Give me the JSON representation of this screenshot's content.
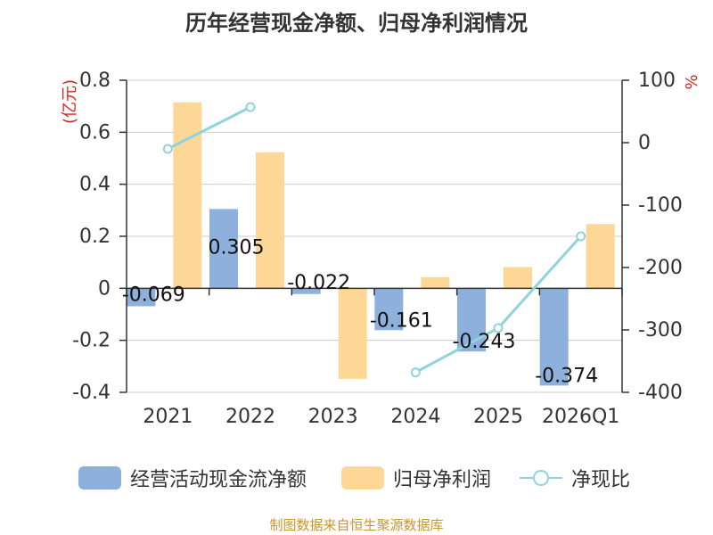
{
  "chart_data": {
    "type": "bar",
    "title": "历年经营现金净额、归母净利润情况",
    "categories": [
      "2021",
      "2022",
      "2023",
      "2024",
      "2025",
      "2026Q1"
    ],
    "series": [
      {
        "name": "经营活动现金流净额",
        "type": "bar",
        "axis": "left",
        "color": "#8eb0dc",
        "values": [
          -0.069,
          0.305,
          -0.022,
          -0.161,
          -0.243,
          -0.374
        ],
        "labels": [
          "-0.069",
          "0.305",
          "-0.022",
          "-0.161",
          "-0.243",
          "-0.374"
        ]
      },
      {
        "name": "归母净利润",
        "type": "bar",
        "axis": "left",
        "color": "#fdd795",
        "values": [
          0.715,
          0.523,
          -0.348,
          0.043,
          0.082,
          0.247
        ]
      },
      {
        "name": "净现比",
        "type": "line",
        "axis": "right",
        "color": "#8fd3dc",
        "values": [
          -10,
          57,
          null,
          -368,
          -297,
          -150
        ]
      }
    ],
    "ylabel_left": "(亿元)",
    "ylabel_right": "%",
    "ylim_left": [
      -0.4,
      0.8
    ],
    "yticks_left": [
      "0.8",
      "0.6",
      "0.4",
      "0.2",
      "0",
      "-0.2",
      "-0.4"
    ],
    "ylim_right": [
      -400,
      100
    ],
    "yticks_right": [
      "100",
      "0",
      "-100",
      "-200",
      "-300",
      "-400"
    ],
    "legend_position": "bottom"
  },
  "source": "制图数据来自恒生聚源数据库"
}
